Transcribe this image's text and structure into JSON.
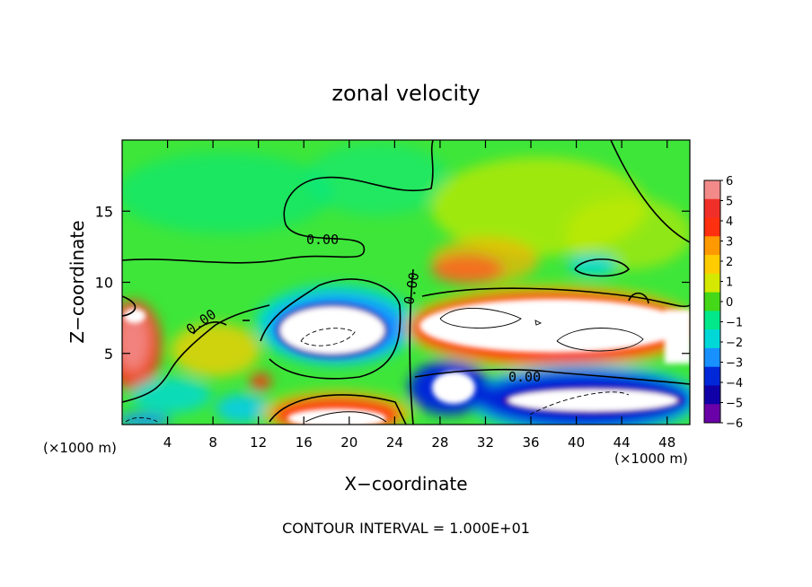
{
  "chart_data": {
    "type": "heatmap",
    "title": "zonal velocity",
    "xlabel": "X−coordinate",
    "ylabel": "Z−coordinate",
    "x_unit": "(×1000 m)",
    "z_unit": "(×1000 m)",
    "xlim": [
      0,
      50
    ],
    "ylim": [
      0,
      20
    ],
    "x_ticks": [
      "4",
      "8",
      "12",
      "16",
      "20",
      "24",
      "28",
      "32",
      "36",
      "40",
      "44",
      "48"
    ],
    "y_ticks": [
      "5",
      "10",
      "15"
    ],
    "colorbar": {
      "min": -6,
      "max": 6,
      "levels": [
        "6",
        "5",
        "4",
        "3",
        "2",
        "1",
        "0",
        "−1",
        "−2",
        "−3",
        "−4",
        "−5",
        "−6"
      ],
      "colors": [
        "#f28a8a",
        "#f03028",
        "#ff3010",
        "#ff9900",
        "#ffcc00",
        "#d4e800",
        "#44d818",
        "#00e88a",
        "#00d8d8",
        "#1890ff",
        "#0028d8",
        "#1000a8",
        "#6a00a8"
      ]
    },
    "contour_labels": [
      "0.00",
      "0.00",
      "0.00",
      "0.00"
    ],
    "annotation": "CONTOUR INTERVAL = 1.000E+01",
    "saturated_color": "#ffffff",
    "field_features": [
      {
        "kind": "jet_positive",
        "x": [
          26,
          50
        ],
        "z": [
          4,
          8
        ],
        "peak": ">6"
      },
      {
        "kind": "jet_negative",
        "x": [
          14,
          24
        ],
        "z": [
          4,
          9
        ],
        "peak": "<-6"
      },
      {
        "kind": "jet_negative",
        "x": [
          28,
          50
        ],
        "z": [
          0,
          4
        ],
        "peak": "<-6"
      },
      {
        "kind": "jet_positive",
        "x": [
          11,
          24
        ],
        "z": [
          0,
          2
        ],
        "peak": ">6"
      },
      {
        "kind": "positive",
        "x": [
          0,
          2
        ],
        "z": [
          2,
          9
        ],
        "peak": 5
      }
    ]
  }
}
